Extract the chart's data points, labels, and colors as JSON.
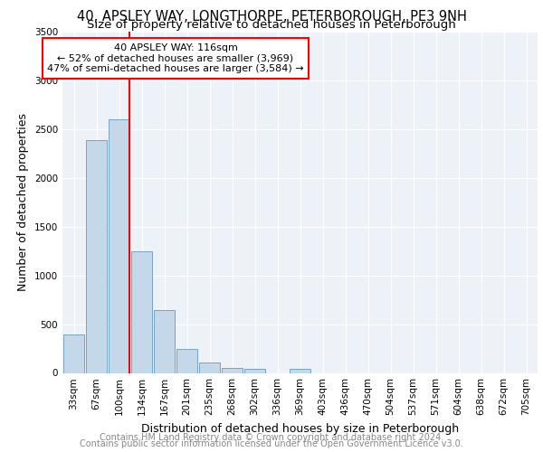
{
  "title": "40, APSLEY WAY, LONGTHORPE, PETERBOROUGH, PE3 9NH",
  "subtitle": "Size of property relative to detached houses in Peterborough",
  "xlabel": "Distribution of detached houses by size in Peterborough",
  "ylabel": "Number of detached properties",
  "annotation_line1": "40 APSLEY WAY: 116sqm",
  "annotation_line2": "← 52% of detached houses are smaller (3,969)",
  "annotation_line3": "47% of semi-detached houses are larger (3,584) →",
  "bar_color": "#c5d8ea",
  "bar_edge_color": "#6699bb",
  "categories": [
    "33sqm",
    "67sqm",
    "100sqm",
    "134sqm",
    "167sqm",
    "201sqm",
    "235sqm",
    "268sqm",
    "302sqm",
    "336sqm",
    "369sqm",
    "403sqm",
    "436sqm",
    "470sqm",
    "504sqm",
    "537sqm",
    "571sqm",
    "604sqm",
    "638sqm",
    "672sqm",
    "705sqm"
  ],
  "values": [
    390,
    2390,
    2600,
    1250,
    640,
    250,
    110,
    55,
    40,
    0,
    40,
    0,
    0,
    0,
    0,
    0,
    0,
    0,
    0,
    0,
    0
  ],
  "ylim": [
    0,
    3500
  ],
  "yticks": [
    0,
    500,
    1000,
    1500,
    2000,
    2500,
    3000,
    3500
  ],
  "red_line_index": 2.47,
  "footnote1": "Contains HM Land Registry data © Crown copyright and database right 2024.",
  "footnote2": "Contains public sector information licensed under the Open Government Licence v3.0.",
  "bg_color": "#edf2f8",
  "grid_color": "#ffffff",
  "title_fontsize": 10.5,
  "subtitle_fontsize": 9.5,
  "axis_label_fontsize": 9,
  "tick_fontsize": 7.5,
  "annotation_fontsize": 8,
  "footnote_fontsize": 7
}
